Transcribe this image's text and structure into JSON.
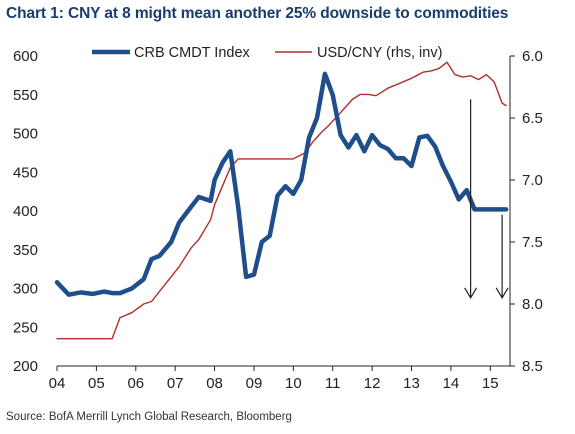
{
  "header": {
    "title": "Chart 1: CNY at 8 might mean another 25% downside to commodities"
  },
  "footer": {
    "source": "Source: BofA Merrill Lynch Global Research, Bloomberg"
  },
  "colors": {
    "crb": "#1f4e8c",
    "usdcny": "#b0302a",
    "title": "#1a3c6e",
    "arrow": "#222222"
  },
  "chart_data": {
    "type": "line",
    "title": "Chart 1: CNY at 8 might mean another 25% downside to commodities",
    "xlabel": "",
    "ylabel": "",
    "x_ticks": [
      "04",
      "05",
      "06",
      "07",
      "08",
      "09",
      "10",
      "11",
      "12",
      "13",
      "14",
      "15"
    ],
    "y_left_ticks": [
      "600",
      "550",
      "500",
      "450",
      "400",
      "350",
      "300",
      "250",
      "200"
    ],
    "y_right_ticks": [
      "6.0",
      "6.5",
      "7.0",
      "7.5",
      "8.0",
      "8.5"
    ],
    "ylim_left": [
      200,
      600
    ],
    "ylim_right": [
      8.5,
      6.0
    ],
    "right_axis_inverted": true,
    "xlim": [
      2004,
      2015.5
    ],
    "legend_position": "top",
    "grid": false,
    "series": [
      {
        "name": "CRB CMDT Index",
        "axis": "left",
        "x": [
          2004.0,
          2004.3,
          2004.6,
          2004.9,
          2005.2,
          2005.4,
          2005.6,
          2005.9,
          2006.2,
          2006.4,
          2006.6,
          2006.9,
          2007.1,
          2007.4,
          2007.6,
          2007.9,
          2008.0,
          2008.2,
          2008.4,
          2008.6,
          2008.8,
          2009.0,
          2009.2,
          2009.4,
          2009.6,
          2009.8,
          2010.0,
          2010.2,
          2010.4,
          2010.6,
          2010.8,
          2011.0,
          2011.2,
          2011.4,
          2011.6,
          2011.8,
          2012.0,
          2012.2,
          2012.4,
          2012.6,
          2012.8,
          2013.0,
          2013.2,
          2013.4,
          2013.6,
          2013.8,
          2014.0,
          2014.2,
          2014.4,
          2014.6,
          2014.8,
          2015.0,
          2015.2,
          2015.4
        ],
        "values": [
          308,
          292,
          295,
          293,
          296,
          294,
          294,
          300,
          312,
          338,
          342,
          360,
          385,
          405,
          418,
          413,
          440,
          462,
          477,
          405,
          315,
          318,
          360,
          368,
          420,
          432,
          422,
          440,
          495,
          520,
          577,
          550,
          498,
          482,
          498,
          477,
          498,
          485,
          480,
          468,
          468,
          458,
          495,
          497,
          483,
          458,
          438,
          415,
          427,
          402,
          402,
          402,
          402,
          402
        ],
        "line_width": 4.5
      },
      {
        "name": "USD/CNY (rhs, inv)",
        "axis": "right",
        "x": [
          2004.0,
          2005.4,
          2005.6,
          2005.9,
          2006.2,
          2006.4,
          2006.6,
          2006.9,
          2007.1,
          2007.4,
          2007.6,
          2007.9,
          2008.0,
          2008.2,
          2008.4,
          2008.6,
          2009.0,
          2009.5,
          2010.0,
          2010.3,
          2010.5,
          2010.7,
          2010.9,
          2011.1,
          2011.3,
          2011.5,
          2011.7,
          2011.9,
          2012.1,
          2012.4,
          2012.7,
          2013.0,
          2013.3,
          2013.5,
          2013.7,
          2013.9,
          2014.1,
          2014.3,
          2014.5,
          2014.7,
          2014.9,
          2015.1,
          2015.3,
          2015.4
        ],
        "values": [
          8.28,
          8.28,
          8.11,
          8.07,
          8.0,
          7.98,
          7.9,
          7.78,
          7.7,
          7.55,
          7.48,
          7.32,
          7.2,
          7.05,
          6.9,
          6.83,
          6.83,
          6.83,
          6.83,
          6.78,
          6.69,
          6.62,
          6.56,
          6.49,
          6.42,
          6.35,
          6.31,
          6.31,
          6.32,
          6.26,
          6.22,
          6.18,
          6.13,
          6.12,
          6.1,
          6.05,
          6.15,
          6.17,
          6.16,
          6.19,
          6.15,
          6.21,
          6.38,
          6.4
        ],
        "line_width": 1.4
      }
    ],
    "annotations": [
      {
        "type": "arrow",
        "x": 2014.5,
        "from": 6.35,
        "to": 7.95,
        "axis": "right"
      },
      {
        "type": "arrow",
        "x": 2015.3,
        "from": 7.28,
        "to": 7.95,
        "axis": "right"
      }
    ]
  }
}
